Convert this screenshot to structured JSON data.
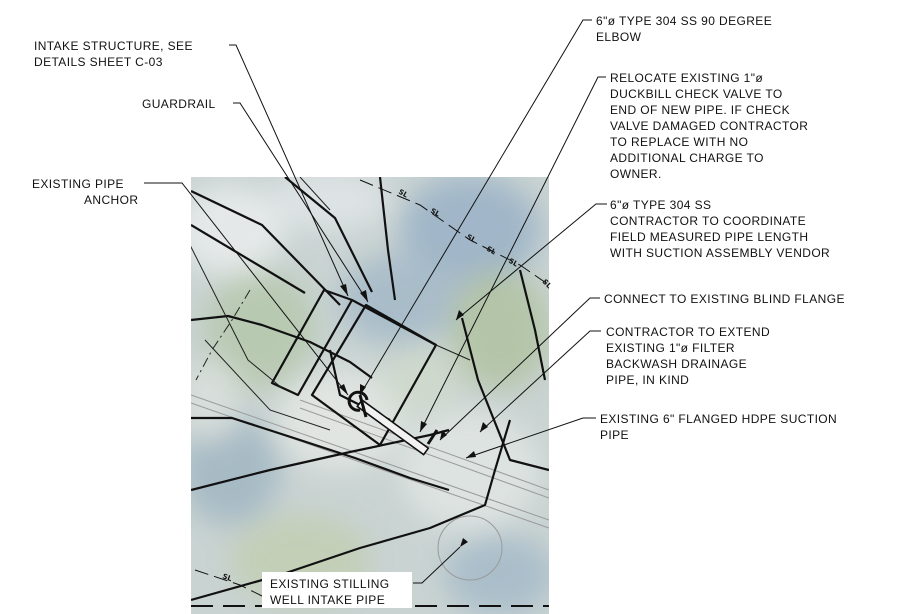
{
  "notes": {
    "intake_line1": "INTAKE STRUCTURE, SEE",
    "intake_line2": "DETAILS SHEET C-03",
    "guardrail": "GUARDRAIL",
    "anchor_line1": "EXISTING PIPE",
    "anchor_line2": "ANCHOR",
    "elbow_line1": "6\"ø TYPE 304 SS 90 DEGREE",
    "elbow_line2": "ELBOW",
    "valve_line1": "RELOCATE EXISTING 1\"ø",
    "valve_line2": "DUCKBILL CHECK VALVE TO",
    "valve_line3": "END OF NEW PIPE. IF CHECK",
    "valve_line4": "VALVE DAMAGED CONTRACTOR",
    "valve_line5": "TO REPLACE WITH NO",
    "valve_line6": "ADDITIONAL CHARGE TO",
    "valve_line7": "OWNER.",
    "ss_line1": "6\"ø TYPE 304 SS",
    "ss_line2": "CONTRACTOR TO COORDINATE",
    "ss_line3": "FIELD MEASURED PIPE LENGTH",
    "ss_line4": "WITH SUCTION ASSEMBLY VENDOR",
    "flange": "CONNECT TO EXISTING BLIND FLANGE",
    "extend_line1": "CONTRACTOR TO EXTEND",
    "extend_line2": "EXISTING 1\"ø FILTER",
    "extend_line3": "BACKWASH DRAINAGE",
    "extend_line4": "PIPE, IN KIND",
    "suction_line1": "EXISTING 6\" FLANGED HDPE SUCTION",
    "suction_line2": "PIPE",
    "stilling_line1": "EXISTING STILLING",
    "stilling_line2": "WELL INTAKE PIPE"
  },
  "line_labels": {
    "sl": "SL"
  },
  "colors": {
    "ink": "#111111",
    "aerial_base": "#c9d3d2",
    "aerial_blue": "#a9bccb",
    "aerial_green": "#b9c6a8"
  }
}
